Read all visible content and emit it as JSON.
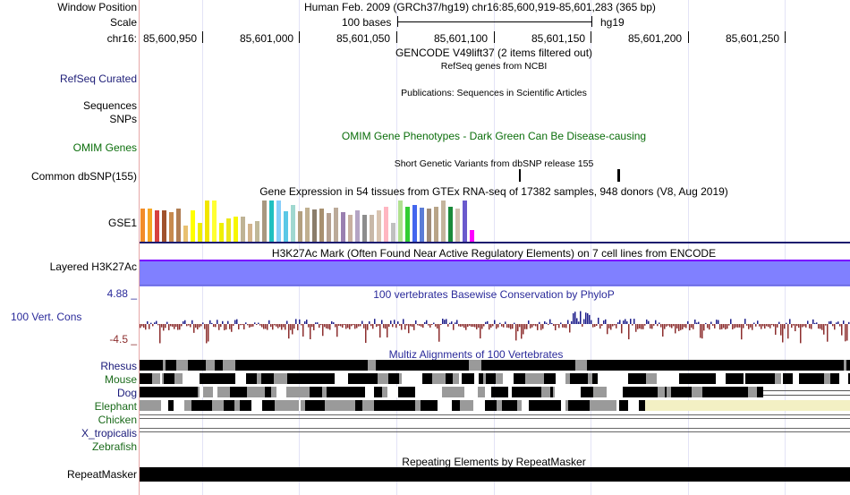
{
  "header": {
    "window_position_label": "Window Position",
    "window_position_text": "Human Feb. 2009 (GRCh37/hg19)   chr16:85,600,919-85,601,283 (365 bp)",
    "scale_label": "Scale",
    "scale_text": "100 bases",
    "scale_assembly": "hg19",
    "chrom_label": "chr16:",
    "ruler_ticks": [
      "85,600,950",
      "85,601,000",
      "85,601,050",
      "85,601,100",
      "85,601,150",
      "85,601,200",
      "85,601,250"
    ]
  },
  "tracks": {
    "gencode": {
      "title": "GENCODE V49lift37 (2 items filtered out)"
    },
    "refseq": {
      "label": "RefSeq Curated",
      "subtitle": "RefSeq genes from NCBI",
      "color": "#1e1e78"
    },
    "publications": {
      "subtitle": "Publications: Sequences in Scientific Articles"
    },
    "sequences": {
      "label": "Sequences"
    },
    "snps": {
      "label": "SNPs"
    },
    "omim": {
      "label": "OMIM Genes",
      "subtitle": "OMIM Gene Phenotypes - Dark Green Can Be Disease-causing",
      "color": "#0b6e0b"
    },
    "dbsnp": {
      "label": "Common dbSNP(155)",
      "subtitle": "Short Genetic Variants from dbSNP release 155"
    },
    "gtex": {
      "label": "GSE1",
      "subtitle": "Gene Expression in 54 tissues from GTEx RNA-seq of 17382 samples, 948 donors (V8, Aug 2019)",
      "bar_colors": [
        "#f28c28",
        "#f5a623",
        "#d64040",
        "#a0522d",
        "#c78a4e",
        "#b07d52",
        "#e8c070",
        "#ffff00",
        "#eeee00",
        "#f2e600",
        "#ffff33",
        "#f0f000",
        "#ece81a",
        "#f7f700",
        "#bfb395",
        "#d2b48c",
        "#c0b898",
        "#a89880",
        "#20c0c0",
        "#87cefa",
        "#5ac8e6",
        "#a0d8d0",
        "#b3a07f",
        "#c0b090",
        "#8b7d6b",
        "#a89070",
        "#b5a090",
        "#bbaa99",
        "#9a7fb0",
        "#c8b0a0",
        "#b4a4c4",
        "#8d8d8d",
        "#c8b8a8",
        "#d9c4b0",
        "#ffb6c1",
        "#c0c0c0",
        "#b0e090",
        "#32cd32",
        "#4466ee",
        "#5b7cd6",
        "#a08c78",
        "#b8a488",
        "#c4b49c",
        "#1a8a3a",
        "#d0c0b0",
        "#6a5acd",
        "#ff00ff"
      ],
      "bar_values": [
        0.78,
        0.78,
        0.74,
        0.74,
        0.7,
        0.78,
        0.38,
        0.74,
        0.44,
        0.98,
        0.98,
        0.44,
        0.56,
        0.6,
        0.6,
        0.42,
        0.48,
        0.98,
        0.98,
        0.98,
        0.72,
        0.88,
        0.72,
        0.8,
        0.76,
        0.78,
        0.68,
        0.8,
        0.7,
        0.64,
        0.74,
        0.64,
        0.64,
        0.74,
        0.82,
        0.44,
        0.98,
        0.82,
        0.88,
        0.8,
        0.78,
        0.84,
        0.98,
        0.82,
        0.78,
        0.98,
        0.28
      ]
    },
    "h3k27ac": {
      "label": "Layered H3K27Ac",
      "subtitle": "H3K27Ac Mark (Often Found Near Active Regulatory Elements) on 7 cell lines from ENCODE",
      "fill": "#8080ff",
      "edge": "#7a00ff"
    },
    "conservation": {
      "label": "100 Vert. Cons",
      "subtitle": "100 vertebrates Basewise Conservation by PhyloP",
      "y_max": "4.88 _",
      "y_min": "-4.5 _",
      "pos_color": "#1c1c8a",
      "neg_color": "#8c2e2e",
      "label_color": "#2a2a9a"
    },
    "multiz": {
      "subtitle": "Multiz Alignments of 100 Vertebrates",
      "species": [
        {
          "name": "Rhesus",
          "color": "#1a1a7a"
        },
        {
          "name": "Mouse",
          "color": "#1a6a1a"
        },
        {
          "name": "Dog",
          "color": "#1a1a7a"
        },
        {
          "name": "Elephant",
          "color": "#1a6a1a"
        },
        {
          "name": "Chicken",
          "color": "#1a6a1a"
        },
        {
          "name": "X_tropicalis",
          "color": "#1a1a7a"
        },
        {
          "name": "Zebrafish",
          "color": "#1a6a1a"
        }
      ]
    },
    "repeatmasker": {
      "label": "RepeatMasker",
      "subtitle": "Repeating Elements by RepeatMasker"
    }
  }
}
